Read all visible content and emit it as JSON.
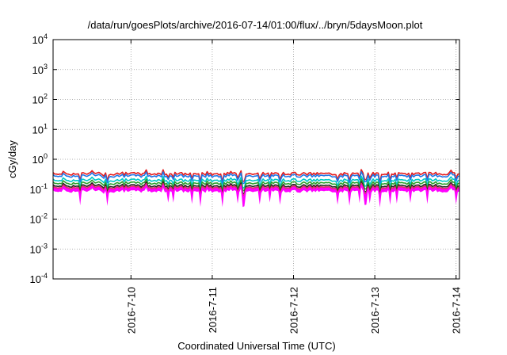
{
  "chart_data": {
    "type": "line",
    "title": "/data/run/goesPlots/archive/2016-07-14/01:00/flux/../bryn/5daysMoon.plot",
    "xlabel": "Coordinated Universal Time (UTC)",
    "ylabel": "cGy/day",
    "yscale": "log",
    "ylim": [
      0.0001,
      10000
    ],
    "xlim": [
      "2016-07-09T01:00",
      "2016-07-14T01:00"
    ],
    "grid": true,
    "legend": "none",
    "y_ticks": [
      {
        "value": 0.0001,
        "base": "10",
        "exp": "-4"
      },
      {
        "value": 0.001,
        "base": "10",
        "exp": "-3"
      },
      {
        "value": 0.01,
        "base": "10",
        "exp": "-2"
      },
      {
        "value": 0.1,
        "base": "10",
        "exp": "-1"
      },
      {
        "value": 1,
        "base": "10",
        "exp": "0"
      },
      {
        "value": 10,
        "base": "10",
        "exp": "1"
      },
      {
        "value": 100,
        "base": "10",
        "exp": "2"
      },
      {
        "value": 1000,
        "base": "10",
        "exp": "3"
      },
      {
        "value": 10000,
        "base": "10",
        "exp": "4"
      }
    ],
    "x_ticks": [
      {
        "value": "2016-07-10T00:00",
        "label": "2016-7-10"
      },
      {
        "value": "2016-07-11T00:00",
        "label": "2016-7-11"
      },
      {
        "value": "2016-07-12T00:00",
        "label": "2016-7-12"
      },
      {
        "value": "2016-07-13T00:00",
        "label": "2016-7-13"
      },
      {
        "value": "2016-07-14T00:00",
        "label": "2016-7-14"
      }
    ],
    "series": [
      {
        "color": "#e41a1c",
        "level": 0.33
      },
      {
        "color": "#1f77e8",
        "level": 0.28
      },
      {
        "color": "#00c8c8",
        "level": 0.2
      },
      {
        "color": "#2ca02c",
        "level": 0.16
      },
      {
        "color": "#222222",
        "level": 0.13
      },
      {
        "color": "#e0306a",
        "level": 0.115
      },
      {
        "color": "#ff00ff",
        "level": 0.1
      }
    ],
    "band": {
      "color": "#ff00ff",
      "upper": 0.12,
      "lower": 0.085
    }
  }
}
